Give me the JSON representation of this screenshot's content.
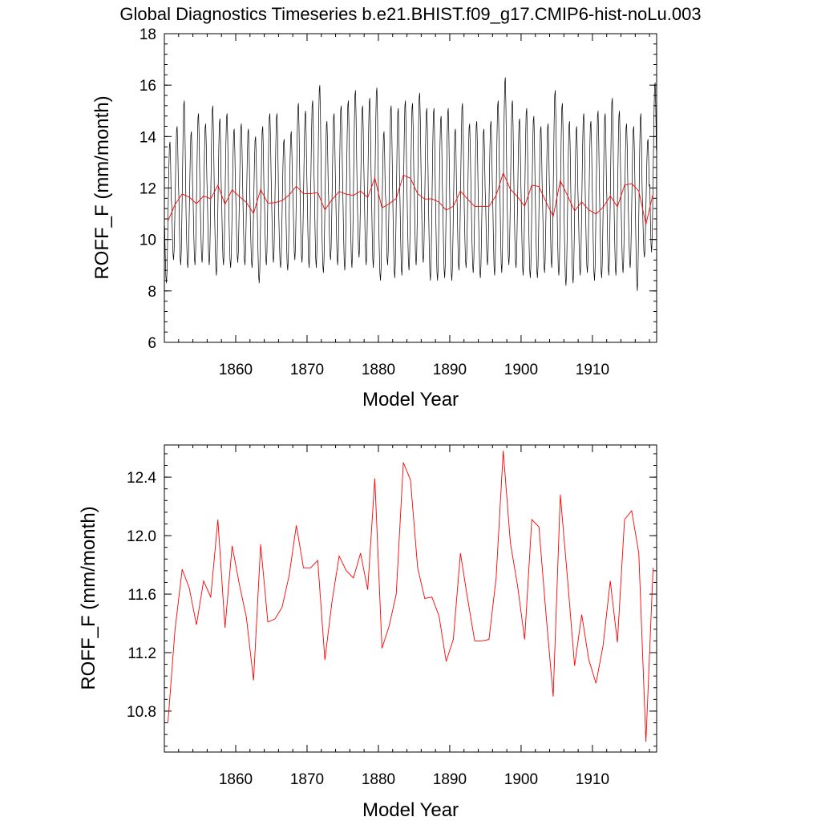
{
  "title": "Global Diagnostics Timeseries b.e21.BHIST.f09_g17.CMIP6-hist-noLu.003",
  "colors": {
    "monthly": "#000000",
    "annual": "#ff0000",
    "axis": "#000000"
  },
  "chart_data": [
    {
      "type": "line",
      "xlabel": "Model Year",
      "ylabel": "ROFF_F (mm/month)",
      "xlim": [
        1850,
        1919
      ],
      "ylim": [
        6,
        18
      ],
      "xticks": [
        1860,
        1870,
        1880,
        1890,
        1900,
        1910
      ],
      "xtick_labels": [
        "1860",
        "1870",
        "1880",
        "1890",
        "1900",
        "1910"
      ],
      "yticks": [
        6,
        8,
        10,
        12,
        14,
        16,
        18
      ],
      "ytick_labels": [
        "6",
        "8",
        "10",
        "12",
        "14",
        "16",
        "18"
      ],
      "grid": false,
      "series": [
        {
          "style": "monthly",
          "annual_max": [
            13.8,
            14.4,
            15.4,
            14.2,
            14.9,
            14.5,
            15.2,
            14.7,
            14.9,
            14.3,
            14.5,
            14.3,
            14.0,
            14.4,
            14.9,
            14.9,
            13.9,
            14.2,
            15.3,
            15.0,
            15.4,
            16.0,
            14.6,
            14.9,
            15.2,
            15.4,
            15.8,
            15.2,
            15.5,
            15.9,
            14.2,
            15.2,
            15.1,
            15.4,
            15.3,
            15.7,
            15.1,
            15.1,
            14.8,
            15.1,
            14.3,
            15.3,
            14.5,
            14.6,
            14.3,
            14.6,
            15.4,
            16.3,
            15.4,
            14.7,
            15.1,
            14.8,
            14.4,
            14.5,
            15.8,
            15.3,
            14.6,
            14.4,
            14.9,
            14.6,
            15.0,
            14.9,
            15.5,
            15.0,
            14.5,
            14.4,
            14.9,
            13.9,
            16.1
          ],
          "annual_min": [
            8.3,
            9.2,
            9.0,
            8.9,
            9.0,
            9.1,
            9.0,
            8.6,
            9.0,
            8.9,
            9.1,
            9.0,
            8.9,
            8.3,
            9.0,
            9.1,
            8.9,
            8.8,
            9.2,
            9.1,
            8.9,
            8.9,
            8.7,
            9.2,
            9.0,
            8.8,
            8.9,
            9.3,
            9.0,
            8.9,
            8.4,
            9.0,
            8.5,
            8.6,
            8.8,
            9.0,
            9.1,
            8.4,
            8.4,
            8.5,
            8.4,
            8.8,
            8.9,
            8.7,
            8.5,
            9.0,
            8.6,
            8.7,
            9.0,
            8.9,
            8.6,
            8.5,
            8.5,
            8.7,
            8.9,
            8.6,
            8.2,
            8.3,
            8.6,
            8.7,
            8.4,
            8.5,
            8.6,
            8.6,
            8.7,
            8.9,
            8.0,
            9.3,
            9.5
          ]
        },
        {
          "style": "annual",
          "x": [
            1850.5,
            1851.5,
            1852.5,
            1853.5,
            1854.5,
            1855.5,
            1856.5,
            1857.5,
            1858.5,
            1859.5,
            1860.5,
            1861.5,
            1862.5,
            1863.5,
            1864.5,
            1865.5,
            1866.5,
            1867.5,
            1868.5,
            1869.5,
            1870.5,
            1871.5,
            1872.5,
            1873.5,
            1874.5,
            1875.5,
            1876.5,
            1877.5,
            1878.5,
            1879.5,
            1880.5,
            1881.5,
            1882.5,
            1883.5,
            1884.5,
            1885.5,
            1886.5,
            1887.5,
            1888.5,
            1889.5,
            1890.5,
            1891.5,
            1892.5,
            1893.5,
            1894.5,
            1895.5,
            1896.5,
            1897.5,
            1898.5,
            1899.5,
            1900.5,
            1901.5,
            1902.5,
            1903.5,
            1904.5,
            1905.5,
            1906.5,
            1907.5,
            1908.5,
            1909.5,
            1910.5,
            1911.5,
            1912.5,
            1913.5,
            1914.5,
            1915.5,
            1916.5,
            1917.5,
            1918.5
          ],
          "values": [
            10.72,
            11.36,
            11.77,
            11.64,
            11.39,
            11.69,
            11.58,
            12.11,
            11.37,
            11.93,
            11.67,
            11.44,
            11.01,
            11.94,
            11.41,
            11.43,
            11.51,
            11.73,
            12.07,
            11.78,
            11.78,
            11.83,
            11.15,
            11.55,
            11.86,
            11.76,
            11.71,
            11.88,
            11.63,
            12.39,
            11.23,
            11.38,
            11.6,
            12.5,
            12.38,
            11.78,
            11.57,
            11.58,
            11.45,
            11.14,
            11.29,
            11.88,
            11.57,
            11.28,
            11.28,
            11.29,
            11.71,
            12.58,
            11.95,
            11.66,
            11.29,
            12.11,
            12.06,
            11.46,
            10.9,
            12.28,
            11.71,
            11.11,
            11.46,
            11.15,
            10.99,
            11.25,
            11.69,
            11.27,
            12.11,
            12.17,
            11.88,
            10.59,
            11.78
          ]
        }
      ]
    },
    {
      "type": "line",
      "xlabel": "Model Year",
      "ylabel": "ROFF_F (mm/month)",
      "xlim": [
        1850,
        1919
      ],
      "ylim": [
        10.52,
        12.62
      ],
      "xticks": [
        1860,
        1870,
        1880,
        1890,
        1900,
        1910
      ],
      "xtick_labels": [
        "1860",
        "1870",
        "1880",
        "1890",
        "1900",
        "1910"
      ],
      "yticks": [
        10.8,
        11.2,
        11.6,
        12.0,
        12.4
      ],
      "ytick_labels": [
        "10.8",
        "11.2",
        "11.6",
        "12.0",
        "12.4"
      ],
      "grid": false,
      "series": [
        {
          "style": "annual",
          "x": [
            1850.5,
            1851.5,
            1852.5,
            1853.5,
            1854.5,
            1855.5,
            1856.5,
            1857.5,
            1858.5,
            1859.5,
            1860.5,
            1861.5,
            1862.5,
            1863.5,
            1864.5,
            1865.5,
            1866.5,
            1867.5,
            1868.5,
            1869.5,
            1870.5,
            1871.5,
            1872.5,
            1873.5,
            1874.5,
            1875.5,
            1876.5,
            1877.5,
            1878.5,
            1879.5,
            1880.5,
            1881.5,
            1882.5,
            1883.5,
            1884.5,
            1885.5,
            1886.5,
            1887.5,
            1888.5,
            1889.5,
            1890.5,
            1891.5,
            1892.5,
            1893.5,
            1894.5,
            1895.5,
            1896.5,
            1897.5,
            1898.5,
            1899.5,
            1900.5,
            1901.5,
            1902.5,
            1903.5,
            1904.5,
            1905.5,
            1906.5,
            1907.5,
            1908.5,
            1909.5,
            1910.5,
            1911.5,
            1912.5,
            1913.5,
            1914.5,
            1915.5,
            1916.5,
            1917.5,
            1918.5
          ],
          "values": [
            10.72,
            11.36,
            11.77,
            11.64,
            11.39,
            11.69,
            11.58,
            12.11,
            11.37,
            11.93,
            11.67,
            11.44,
            11.01,
            11.94,
            11.41,
            11.43,
            11.51,
            11.73,
            12.07,
            11.78,
            11.78,
            11.83,
            11.15,
            11.55,
            11.86,
            11.76,
            11.71,
            11.88,
            11.63,
            12.39,
            11.23,
            11.38,
            11.6,
            12.5,
            12.38,
            11.78,
            11.57,
            11.58,
            11.45,
            11.14,
            11.29,
            11.88,
            11.57,
            11.28,
            11.28,
            11.29,
            11.71,
            12.58,
            11.95,
            11.66,
            11.29,
            12.11,
            12.06,
            11.46,
            10.9,
            12.28,
            11.71,
            11.11,
            11.46,
            11.15,
            10.99,
            11.25,
            11.69,
            11.27,
            12.11,
            12.17,
            11.88,
            10.59,
            11.78
          ]
        }
      ]
    }
  ]
}
